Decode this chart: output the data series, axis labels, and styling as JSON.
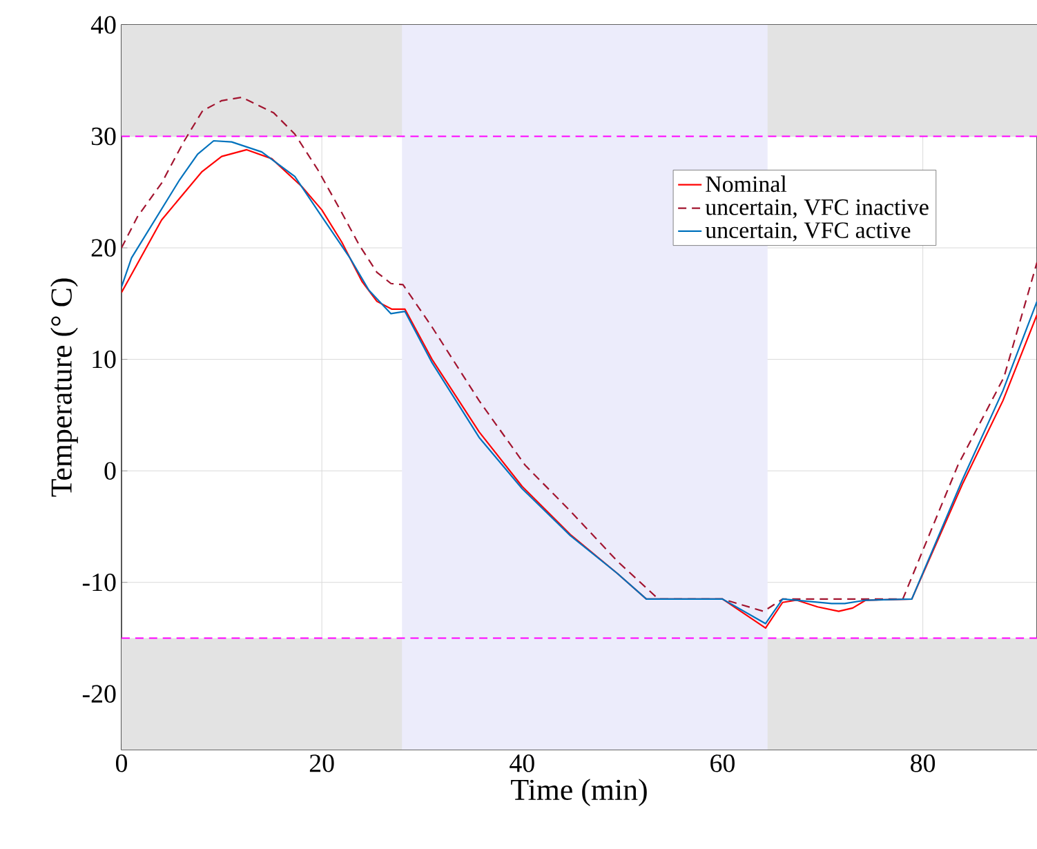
{
  "chart_data": {
    "type": "line",
    "xlabel": "Time (min)",
    "ylabel": "Temperature (° C)",
    "xlim": [
      0,
      91.4
    ],
    "ylim": [
      -25,
      40
    ],
    "xticks": [
      0,
      20,
      40,
      60,
      80
    ],
    "yticks": [
      -20,
      -10,
      0,
      10,
      20,
      30,
      40
    ],
    "grid": true,
    "legend": "top right",
    "marker": "none",
    "bands": [
      {
        "axis": "y",
        "from": 30,
        "to": 40,
        "color": "#e3e3e3"
      },
      {
        "axis": "y",
        "from": -25,
        "to": -15,
        "color": "#e3e3e3"
      },
      {
        "axis": "x",
        "from": 28,
        "to": 64.5,
        "color": "#ececfb"
      }
    ],
    "ref_lines": [
      {
        "axis": "y",
        "value": 30,
        "color": "#ff00ff",
        "line_style": "dashed"
      },
      {
        "axis": "y",
        "value": -15,
        "color": "#ff00ff",
        "line_style": "dashed"
      }
    ],
    "series": [
      {
        "name": "Nominal",
        "color": "#ff0000",
        "line_style": "solid",
        "x": [
          0,
          4,
          8,
          10,
          12.5,
          15,
          18,
          20,
          22,
          24,
          25.5,
          27,
          28.3,
          31,
          35.7,
          40,
          44.8,
          49.5,
          52.4,
          60,
          64.3,
          66,
          67.4,
          69.5,
          71.6,
          73,
          74.3,
          78.9,
          84,
          88,
          91.4
        ],
        "values": [
          16.0,
          22.5,
          26.8,
          28.2,
          28.8,
          28.0,
          25.5,
          23.4,
          20.5,
          17.0,
          15.2,
          14.5,
          14.5,
          10.0,
          3.5,
          -1.4,
          -5.7,
          -9.2,
          -11.5,
          -11.5,
          -14.1,
          -11.8,
          -11.6,
          -12.2,
          -12.6,
          -12.3,
          -11.6,
          -11.5,
          -1.1,
          6.3,
          14.0
        ]
      },
      {
        "name": "uncertain, VFC inactive",
        "color": "#a2142f",
        "line_style": "dashed",
        "x": [
          0,
          1.6,
          4,
          6.2,
          8.1,
          10,
          12,
          15.2,
          17.3,
          19.6,
          21.9,
          23.7,
          25.5,
          26.9,
          28.1,
          31,
          35.7,
          40.3,
          44.8,
          49.5,
          53.6,
          60,
          64.1,
          66,
          78,
          83.5,
          88.1,
          91.4
        ],
        "values": [
          20.0,
          22.8,
          25.8,
          29.5,
          32.3,
          33.2,
          33.5,
          32.1,
          30.2,
          27.0,
          23.3,
          20.3,
          17.8,
          16.8,
          16.7,
          12.9,
          6.3,
          0.5,
          -3.6,
          -8.1,
          -11.5,
          -11.5,
          -12.6,
          -11.5,
          -11.5,
          0.5,
          8.4,
          18.7
        ]
      },
      {
        "name": "uncertain, VFC active",
        "color": "#0072bd",
        "line_style": "solid",
        "x": [
          0,
          1,
          5.8,
          7.6,
          9.2,
          11,
          14,
          17.3,
          20,
          22.8,
          24.7,
          26.9,
          28.3,
          31,
          35.7,
          40,
          44.8,
          49.5,
          52.4,
          60,
          64.3,
          66,
          67.4,
          70.9,
          72.2,
          74.3,
          78.9,
          84,
          88,
          91.4
        ],
        "values": [
          16.5,
          19.1,
          26.1,
          28.4,
          29.6,
          29.5,
          28.6,
          26.4,
          22.8,
          19.1,
          16.2,
          14.1,
          14.3,
          9.7,
          3.0,
          -1.6,
          -5.8,
          -9.2,
          -11.5,
          -11.5,
          -13.7,
          -11.5,
          -11.6,
          -11.9,
          -11.9,
          -11.6,
          -11.5,
          -0.7,
          7.2,
          15.2
        ]
      }
    ]
  }
}
